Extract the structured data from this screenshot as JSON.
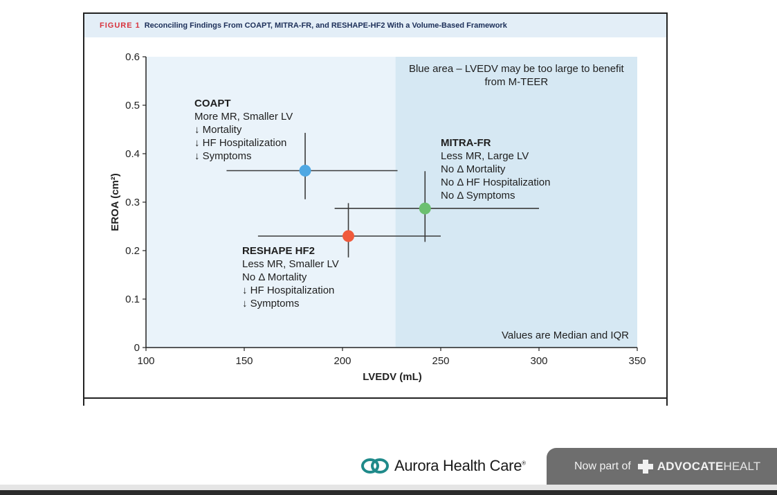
{
  "figure": {
    "label": "FIGURE 1",
    "caption": "Reconciling Findings From COAPT, MITRA-FR, and RESHAPE-HF2 With a Volume-Based Framework"
  },
  "chart_data": {
    "type": "scatter",
    "xlabel": "LVEDV (mL)",
    "ylabel": "EROA (cm²)",
    "xlim": [
      100,
      350
    ],
    "ylim": [
      0,
      0.6
    ],
    "xticks": [
      100,
      150,
      200,
      250,
      300,
      350
    ],
    "yticks": [
      "0",
      "0.1",
      "0.2",
      "0.3",
      "0.4",
      "0.5",
      "0.6"
    ],
    "shaded_region": {
      "x_from": 227,
      "x_to": 350,
      "label_line1": "Blue area – LVEDV may be too large to benefit",
      "label_line2": "from M-TEER",
      "color": "#d6e8f3"
    },
    "background_color": "#eaf3fa",
    "footnote": "Values are Median and IQR",
    "series": [
      {
        "name": "COAPT",
        "x": 181,
        "y": 0.365,
        "x_iqr": [
          141,
          228
        ],
        "y_iqr": [
          0.306,
          0.443
        ],
        "color": "#4fa8e3",
        "notes": [
          "More MR, Smaller LV",
          "↓ Mortality",
          "↓ HF Hospitalization",
          "↓ Symptoms"
        ]
      },
      {
        "name": "MITRA-FR",
        "x": 242,
        "y": 0.287,
        "x_iqr": [
          196,
          300
        ],
        "y_iqr": [
          0.218,
          0.364
        ],
        "color": "#6cc070",
        "notes": [
          "Less MR, Large LV",
          "No Δ Mortality",
          "No Δ HF Hospitalization",
          "No Δ Symptoms"
        ]
      },
      {
        "name": "RESHAPE HF2",
        "x": 203,
        "y": 0.23,
        "x_iqr": [
          157,
          250
        ],
        "y_iqr": [
          0.186,
          0.298
        ],
        "color": "#f05a3c",
        "notes": [
          "Less MR, Smaller LV",
          "No Δ Mortality",
          "↓ HF Hospitalization",
          "↓ Symptoms"
        ]
      }
    ]
  },
  "footer": {
    "logo_name": "Aurora Health Care",
    "logo_mark": "®",
    "banner_prefix": "Now part of",
    "banner_brand": "ADVOCATE",
    "banner_brand_tail": "HEALT"
  },
  "colors": {
    "logo_teal": "#1f8a8a",
    "banner": "#6e6e6e"
  }
}
